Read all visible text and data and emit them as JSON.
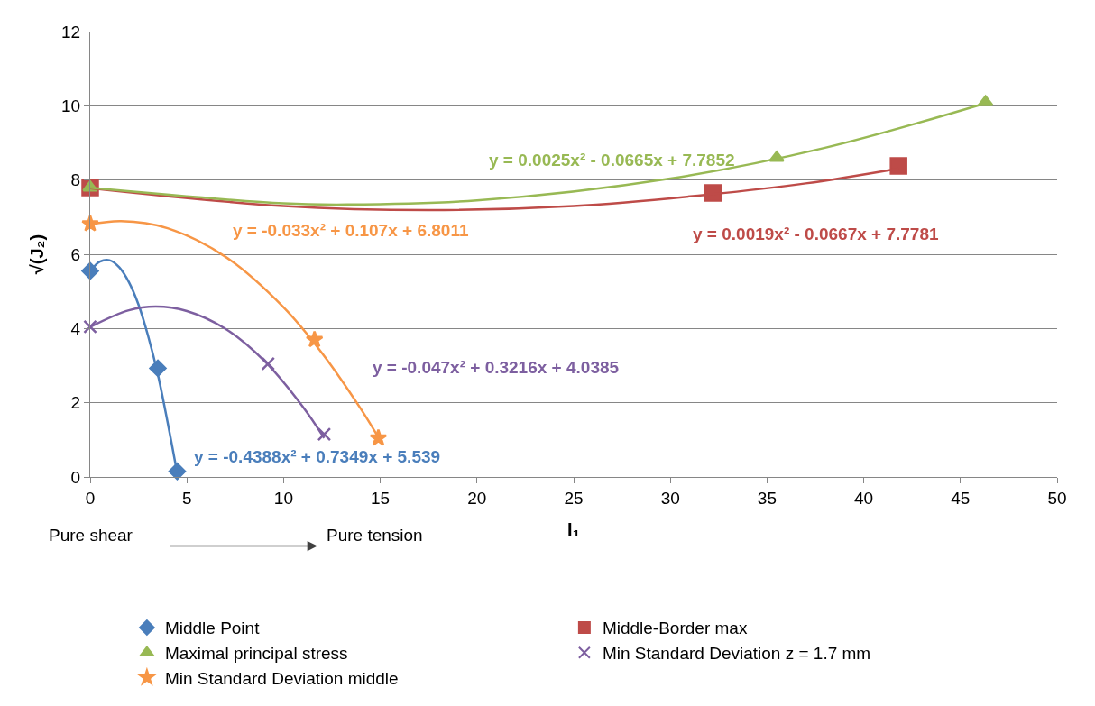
{
  "chart_data": {
    "type": "scatter",
    "xlabel": "I₁",
    "ylabel": "√(J₂)",
    "xlim": [
      0,
      50
    ],
    "xticks": [
      0,
      5,
      10,
      15,
      20,
      25,
      30,
      35,
      40,
      45,
      50
    ],
    "ylim": [
      0,
      12
    ],
    "yticks": [
      0,
      2,
      4,
      6,
      8,
      10,
      12
    ],
    "grid": "y",
    "legend": "bottom",
    "series": [
      {
        "name": "Middle Point",
        "color": "#4a7ebb",
        "marker": "diamond",
        "x": [
          0,
          3.5,
          4.5
        ],
        "values": [
          5.55,
          2.93,
          0.15
        ]
      },
      {
        "name": "Middle-Border max",
        "color": "#be4b48",
        "marker": "square",
        "x": [
          0,
          32.2,
          41.8
        ],
        "values": [
          7.8,
          7.65,
          8.38
        ]
      },
      {
        "name": "Maximal principal stress",
        "color": "#98b954",
        "marker": "triangle",
        "x": [
          0,
          35.5,
          46.3
        ],
        "values": [
          7.8,
          8.6,
          10.1
        ]
      },
      {
        "name": "Min Standard Deviation z = 1.7 mm",
        "color": "#7d5fa0",
        "marker": "cross",
        "x": [
          0,
          9.2,
          12.1
        ],
        "values": [
          4.05,
          3.05,
          1.15
        ]
      },
      {
        "name": "Min Standard Deviation middle",
        "color": "#f79646",
        "marker": "star",
        "x": [
          0,
          11.6,
          14.9
        ],
        "values": [
          6.82,
          3.7,
          1.05
        ]
      },
      {
        "type": "line",
        "color": "#4a7ebb",
        "marker": "none",
        "x": [
          0,
          0.5,
          1,
          1.5,
          2,
          2.5,
          3,
          3.5,
          4,
          4.5
        ],
        "values": [
          5.54,
          5.8,
          5.84,
          5.65,
          5.25,
          4.64,
          3.79,
          2.76,
          1.48,
          0.1
        ]
      },
      {
        "type": "line",
        "color": "#be4b48",
        "marker": "none",
        "x": [
          0,
          10,
          17.5,
          25,
          32,
          37,
          41.8
        ],
        "values": [
          7.78,
          7.3,
          7.19,
          7.3,
          7.61,
          7.91,
          8.31
        ]
      },
      {
        "type": "line",
        "color": "#98b954",
        "marker": "none",
        "x": [
          0,
          10,
          13.3,
          20,
          30,
          38,
          46.3
        ],
        "values": [
          7.79,
          7.37,
          7.34,
          7.45,
          8.04,
          8.87,
          10.07
        ]
      },
      {
        "type": "line",
        "color": "#7d5fa0",
        "marker": "none",
        "x": [
          0,
          2,
          3.4,
          5,
          7,
          9,
          11,
          12.1
        ],
        "values": [
          4.04,
          4.49,
          4.59,
          4.47,
          3.99,
          3.13,
          1.89,
          1.05
        ]
      },
      {
        "type": "line",
        "color": "#f79646",
        "marker": "none",
        "x": [
          0,
          1.6,
          4,
          7,
          10,
          12,
          14,
          15
        ],
        "values": [
          6.8,
          6.89,
          6.7,
          5.93,
          4.57,
          3.33,
          1.83,
          0.98
        ]
      }
    ],
    "annotations": [
      "y = -0.4388x² + 0.7349x + 5.539",
      "y = 0.0019x² - 0.0667x + 7.7781",
      "y = 0.0025x² - 0.0665x + 7.7852",
      "y = -0.047x² + 0.3216x + 4.0385",
      "y = -0.033x² + 0.107x + 6.8011",
      "Pure shear",
      "Pure tension"
    ]
  }
}
